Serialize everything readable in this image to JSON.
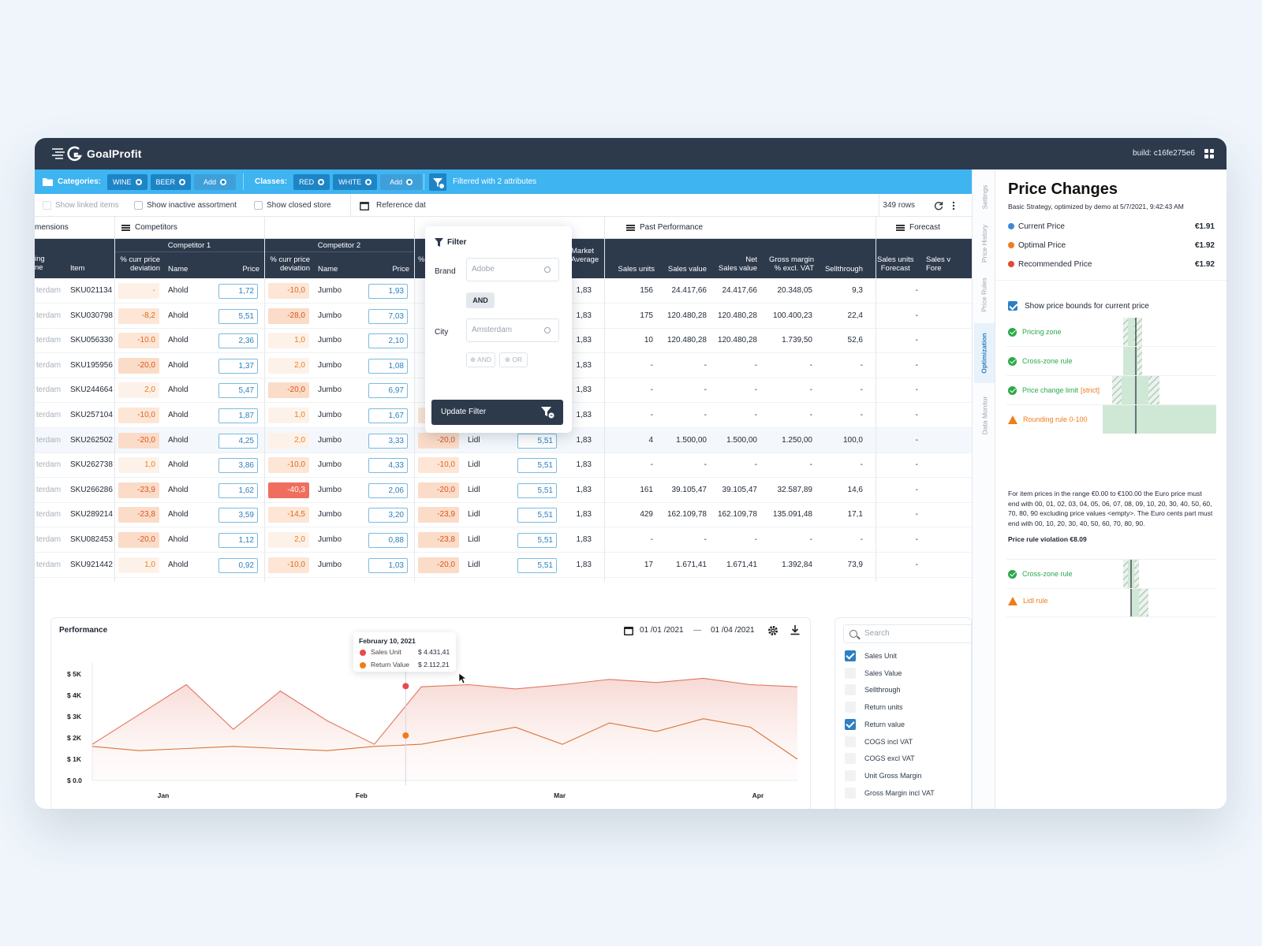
{
  "app": {
    "name": "GoalProfit",
    "build": "build: c16fe275e6"
  },
  "filterbar": {
    "categories_label": "Categories:",
    "categories": [
      "WINE",
      "BEER"
    ],
    "add_label": "Add",
    "classes_label": "Classes:",
    "classes": [
      "RED",
      "WHITE"
    ],
    "filtered_text": "Filtered with 2 attributes"
  },
  "toolbar": {
    "show_linked": "Show linked items",
    "show_inactive": "Show inactive assortment",
    "show_closed": "Show closed store",
    "reference_date": "Reference dat",
    "rows": "349 rows"
  },
  "groups": {
    "dimensions": "mensions",
    "competitors": "Competitors",
    "past_performance": "Past Performance",
    "forecast": "Forecast"
  },
  "header": {
    "pricing_zone": "ing\nne",
    "item": "Item",
    "competitor1": "Competitor 1",
    "competitor2": "Competitor 2",
    "dev": "% curr price\ndeviation",
    "name": "Name",
    "price": "Price",
    "dev3_partial": "% c",
    "market_average": "Market\nAverage",
    "sales_units": "Sales units",
    "sales_value": "Sales value",
    "net_sales_value": "Net\nSales value",
    "gross_margin": "Gross margin\n% excl. VAT",
    "sellthrough": "Sellthrough",
    "sales_units_forecast": "Sales units\nForecast",
    "sales_forecast_partial": "Sales v\nFore"
  },
  "rows": [
    {
      "zone": "terdam",
      "sku": "SKU021134",
      "d1": "-",
      "c1": "Ahold",
      "p1": "1,72",
      "d2": "-10,0",
      "c2": "Jumbo",
      "p2": "1,93",
      "d3": "",
      "c3": "",
      "p3": "",
      "avg": "1,83",
      "su": "156",
      "sv": "24.417,66",
      "nsv": "24.417,66",
      "gm": "20.348,05",
      "st": "9,3",
      "fc": "-"
    },
    {
      "zone": "terdam",
      "sku": "SKU030798",
      "d1": "-8,2",
      "c1": "Ahold",
      "p1": "5,51",
      "d2": "-28,0",
      "c2": "Jumbo",
      "p2": "7,03",
      "d3": "",
      "c3": "",
      "p3": "",
      "avg": "1,83",
      "su": "175",
      "sv": "120.480,28",
      "nsv": "120.480,28",
      "gm": "100.400,23",
      "st": "22,4",
      "fc": "-"
    },
    {
      "zone": "terdam",
      "sku": "SKU056330",
      "d1": "-10.0",
      "c1": "Ahold",
      "p1": "2,36",
      "d2": "1,0",
      "c2": "Jumbo",
      "p2": "2,10",
      "d3": "",
      "c3": "",
      "p3": "",
      "avg": "1,83",
      "su": "10",
      "sv": "120.480,28",
      "nsv": "120.480,28",
      "gm": "1.739,50",
      "st": "52,6",
      "fc": "-"
    },
    {
      "zone": "terdam",
      "sku": "SKU195956",
      "d1": "-20,0",
      "c1": "Ahold",
      "p1": "1,37",
      "d2": "2,0",
      "c2": "Jumbo",
      "p2": "1,08",
      "d3": "",
      "c3": "",
      "p3": "",
      "avg": "1,83",
      "su": "-",
      "sv": "-",
      "nsv": "-",
      "gm": "-",
      "st": "-",
      "fc": "-"
    },
    {
      "zone": "terdam",
      "sku": "SKU244664",
      "d1": "2,0",
      "c1": "Ahold",
      "p1": "5,47",
      "d2": "-20,0",
      "c2": "Jumbo",
      "p2": "6,97",
      "d3": "",
      "c3": "",
      "p3": "",
      "avg": "1,83",
      "su": "-",
      "sv": "-",
      "nsv": "-",
      "gm": "-",
      "st": "-",
      "fc": "-"
    },
    {
      "zone": "terdam",
      "sku": "SKU257104",
      "d1": "-10,0",
      "c1": "Ahold",
      "p1": "1,87",
      "d2": "1,0",
      "c2": "Jumbo",
      "p2": "1,67",
      "d3": "-10,0",
      "c3": "Lidl",
      "p3": "5,51",
      "avg": "1,83",
      "su": "-",
      "sv": "-",
      "nsv": "-",
      "gm": "-",
      "st": "-",
      "fc": "-"
    },
    {
      "zone": "terdam",
      "sku": "SKU262502",
      "d1": "-20,0",
      "c1": "Ahold",
      "p1": "4,25",
      "d2": "2,0",
      "c2": "Jumbo",
      "p2": "3,33",
      "d3": "-20,0",
      "c3": "Lidl",
      "p3": "5,51",
      "avg": "1,83",
      "su": "4",
      "sv": "1.500,00",
      "nsv": "1.500,00",
      "gm": "1.250,00",
      "st": "100,0",
      "fc": "-"
    },
    {
      "zone": "terdam",
      "sku": "SKU262738",
      "d1": "1,0",
      "c1": "Ahold",
      "p1": "3,86",
      "d2": "-10,0",
      "c2": "Jumbo",
      "p2": "4,33",
      "d3": "-10,0",
      "c3": "Lidl",
      "p3": "5,51",
      "avg": "1,83",
      "su": "-",
      "sv": "-",
      "nsv": "-",
      "gm": "-",
      "st": "-",
      "fc": "-"
    },
    {
      "zone": "terdam",
      "sku": "SKU266286",
      "d1": "-23,9",
      "c1": "Ahold",
      "p1": "1,62",
      "d2": "-40,3",
      "c2": "Jumbo",
      "p2": "2,06",
      "d3": "-20,0",
      "c3": "Lidl",
      "p3": "5,51",
      "avg": "1,83",
      "su": "161",
      "sv": "39.105,47",
      "nsv": "39.105,47",
      "gm": "32.587,89",
      "st": "14,6",
      "fc": "-"
    },
    {
      "zone": "terdam",
      "sku": "SKU289214",
      "d1": "-23,8",
      "c1": "Ahold",
      "p1": "3,59",
      "d2": "-14,5",
      "c2": "Jumbo",
      "p2": "3,20",
      "d3": "-23,9",
      "c3": "Lidl",
      "p3": "5,51",
      "avg": "1,83",
      "su": "429",
      "sv": "162.109,78",
      "nsv": "162.109,78",
      "gm": "135.091,48",
      "st": "17,1",
      "fc": "-"
    },
    {
      "zone": "terdam",
      "sku": "SKU082453",
      "d1": "-20,0",
      "c1": "Ahold",
      "p1": "1,12",
      "d2": "2,0",
      "c2": "Jumbo",
      "p2": "0,88",
      "d3": "-23,8",
      "c3": "Lidl",
      "p3": "5,51",
      "avg": "1,83",
      "su": "-",
      "sv": "-",
      "nsv": "-",
      "gm": "-",
      "st": "-",
      "fc": "-"
    },
    {
      "zone": "terdam",
      "sku": "SKU921442",
      "d1": "1,0",
      "c1": "Ahold",
      "p1": "0,92",
      "d2": "-10,0",
      "c2": "Jumbo",
      "p2": "1,03",
      "d3": "-20,0",
      "c3": "Lidl",
      "p3": "5,51",
      "avg": "1,83",
      "su": "17",
      "sv": "1.671,41",
      "nsv": "1.671,41",
      "gm": "1.392,84",
      "st": "73,9",
      "fc": "-"
    }
  ],
  "filter_popup": {
    "title": "Filter",
    "brand_label": "Brand",
    "brand_value": "Adobe",
    "and_label": "AND",
    "city_label": "City",
    "city_value": "Amsterdam",
    "add_and": "AND",
    "add_or": "OR",
    "update_button": "Update Filter"
  },
  "performance": {
    "title": "Performance",
    "date_from": "01 /01 /2021",
    "date_sep": "—",
    "date_to": "01 /04 /2021",
    "tooltip": {
      "date": "February 10, 2021",
      "s1_label": "Sales Unit",
      "s1_value": "$ 4.431,41",
      "s2_label": "Return Value",
      "s2_value": "$ 2.112,21"
    }
  },
  "chart_data": {
    "type": "area",
    "y_ticks": [
      "$ 5K",
      "$ 4K",
      "$ 3K",
      "$ 2K",
      "$ 1K",
      "$ 0.0"
    ],
    "ylim": [
      0,
      5000
    ],
    "x_ticks": [
      "Jan",
      "Feb",
      "Mar",
      "Apr"
    ],
    "x": [
      1,
      7,
      13,
      19,
      25,
      31,
      37,
      43,
      49,
      55,
      61,
      67,
      73,
      79,
      85,
      91
    ],
    "series": [
      {
        "name": "Sales Unit",
        "values": [
          1700,
          3100,
          4500,
          2400,
          4200,
          2800,
          1700,
          4400,
          4500,
          4300,
          4500,
          4750,
          4600,
          4800,
          4500,
          4400
        ]
      },
      {
        "name": "Return Value",
        "values": [
          1600,
          1400,
          1500,
          1600,
          1500,
          1400,
          1600,
          1700,
          2100,
          2500,
          1700,
          2700,
          2300,
          2900,
          2500,
          1000
        ]
      }
    ],
    "colors": {
      "Sales Unit": "#e8494f",
      "Return Value": "#ef7d1a"
    },
    "highlight": {
      "x": 41,
      "y_sales": 4431.41,
      "y_return": 2112.21
    }
  },
  "series_toggles": {
    "search_placeholder": "Search",
    "items": [
      {
        "label": "Sales Unit",
        "checked": true
      },
      {
        "label": "Sales Value",
        "checked": false
      },
      {
        "label": "Sellthrough",
        "checked": false
      },
      {
        "label": "Return units",
        "checked": false
      },
      {
        "label": "Return value",
        "checked": true
      },
      {
        "label": "COGS incl VAT",
        "checked": false
      },
      {
        "label": "COGS excl VAT",
        "checked": false
      },
      {
        "label": "Unit Gross Margin",
        "checked": false
      },
      {
        "label": "Gross Margin incl VAT",
        "checked": false
      }
    ]
  },
  "side_tabs": [
    "Settings",
    "Price History",
    "Price Rules",
    "Optimization",
    "Data Monitor"
  ],
  "price_changes": {
    "title": "Price Changes",
    "subtitle": "Basic Strategy, optimized by demo at 5/7/2021, 9:42:43 AM",
    "current_label": "Current Price",
    "current_value": "€1.91",
    "optimal_label": "Optimal Price",
    "optimal_value": "€1.92",
    "recommended_label": "Recommended Price",
    "recommended_value": "€1.92",
    "show_bounds": "Show price bounds for current price",
    "rules": [
      {
        "label": "Pricing  zone",
        "tag": ""
      },
      {
        "label": "Cross-zone rule",
        "tag": ""
      },
      {
        "label": "Price change limit",
        "tag": "[strict]"
      }
    ],
    "rounding_rule": "Rounding rule 0-100",
    "note": "For item prices in the range €0.00 to €100.00 the Euro price must end with 00, 01, 02, 03, 04, 05, 06, 07, 08, 09, 10, 20, 30, 40, 50, 60, 70, 80, 90 excluding price values <empty>. The Euro cents part must end with 00, 10, 20, 30, 40, 50, 60, 70, 80, 90.",
    "violation": "Price rule violation €8.09",
    "rules2": [
      {
        "label": "Cross-zone rule"
      }
    ],
    "lidl_rule": "Lidl rule",
    "colors": {
      "current": "#3d8ad8",
      "optimal": "#ef7d1a",
      "recommended": "#e04b32",
      "ok": "#2ba94a",
      "warn": "#ef7d1a"
    }
  }
}
